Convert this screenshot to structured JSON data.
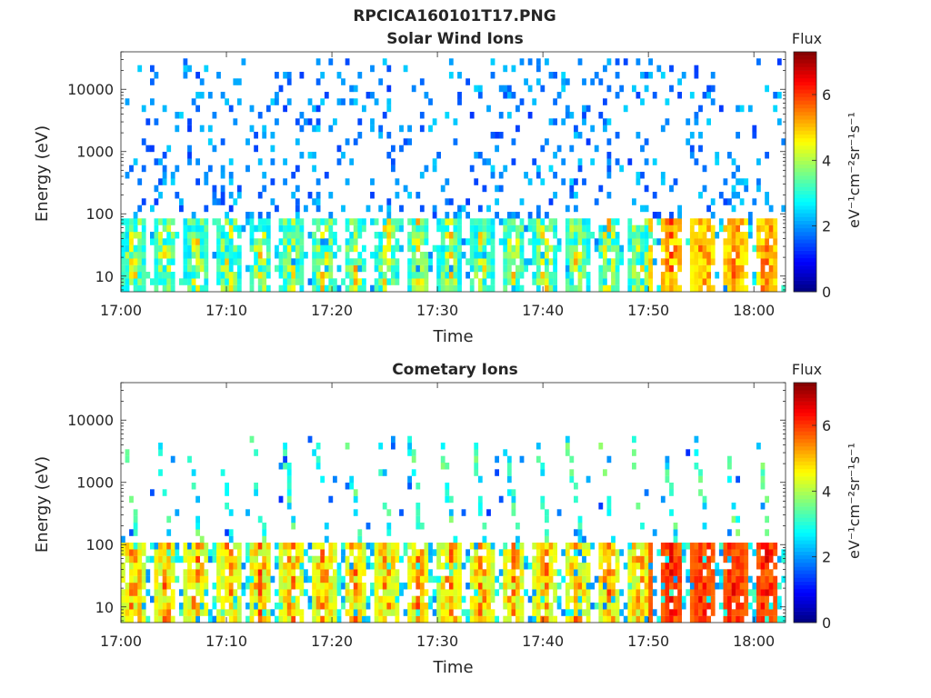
{
  "figure": {
    "title": "RPCICA160101T17.PNG"
  },
  "colormap": [
    "#00007f",
    "#0000ff",
    "#007fff",
    "#00ffff",
    "#7fff7f",
    "#ffff00",
    "#ff7f00",
    "#ff0000",
    "#7f0000"
  ],
  "chart_data": [
    {
      "type": "heatmap",
      "title": "Solar Wind Ions",
      "xlabel": "Time",
      "ylabel": "Energy (eV)",
      "yscale": "log",
      "ylim": [
        5.6,
        40000
      ],
      "xlim": [
        "17:00",
        "18:03"
      ],
      "xticks": [
        "17:00",
        "17:10",
        "17:20",
        "17:30",
        "17:40",
        "17:50",
        "18:00"
      ],
      "yticks": [
        10,
        100,
        1000,
        10000
      ],
      "ytick_labels": [
        "10",
        "100",
        "1000",
        "10000"
      ],
      "colorbar": {
        "label": "Flux",
        "units": "eV⁻¹cm⁻²sr⁻¹s⁻¹",
        "range": [
          0,
          7.3
        ],
        "ticks": [
          0,
          2,
          4,
          6
        ]
      },
      "pattern": {
        "burst_times": [
          "17:01",
          "17:04",
          "17:07",
          "17:10",
          "17:13",
          "17:16",
          "17:19",
          "17:22",
          "17:25",
          "17:28",
          "17:31",
          "17:34",
          "17:37",
          "17:40",
          "17:43",
          "17:46",
          "17:49",
          "17:52",
          "17:55",
          "17:58",
          "18:01"
        ],
        "core_energy_range_eV": [
          6,
          90
        ],
        "core_flux_range": [
          2.5,
          5.5
        ],
        "core_flux_late_increase": [
          4.5,
          6.3
        ],
        "sparse_energy_range_eV": [
          90,
          30000
        ],
        "sparse_flux": 1.3
      }
    },
    {
      "type": "heatmap",
      "title": "Cometary Ions",
      "xlabel": "Time",
      "ylabel": "Energy (eV)",
      "yscale": "log",
      "ylim": [
        5.6,
        40000
      ],
      "xlim": [
        "17:00",
        "18:03"
      ],
      "xticks": [
        "17:00",
        "17:10",
        "17:20",
        "17:30",
        "17:40",
        "17:50",
        "18:00"
      ],
      "yticks": [
        10,
        100,
        1000,
        10000
      ],
      "ytick_labels": [
        "10",
        "100",
        "1000",
        "10000"
      ],
      "colorbar": {
        "label": "Flux",
        "units": "eV⁻¹cm⁻²sr⁻¹s⁻¹",
        "range": [
          0,
          7.3
        ],
        "ticks": [
          0,
          2,
          4,
          6
        ]
      },
      "pattern": {
        "burst_times": [
          "17:01",
          "17:04",
          "17:07",
          "17:10",
          "17:13",
          "17:16",
          "17:19",
          "17:22",
          "17:25",
          "17:28",
          "17:31",
          "17:34",
          "17:37",
          "17:40",
          "17:43",
          "17:46",
          "17:49",
          "17:52",
          "17:55",
          "17:58",
          "18:01"
        ],
        "core_energy_range_eV": [
          6,
          120
        ],
        "core_flux_range": [
          4.0,
          6.2
        ],
        "core_flux_late_increase": [
          5.5,
          6.8
        ],
        "streak_energy_range_eV": [
          120,
          6000
        ],
        "streak_flux": 2.2
      }
    }
  ]
}
